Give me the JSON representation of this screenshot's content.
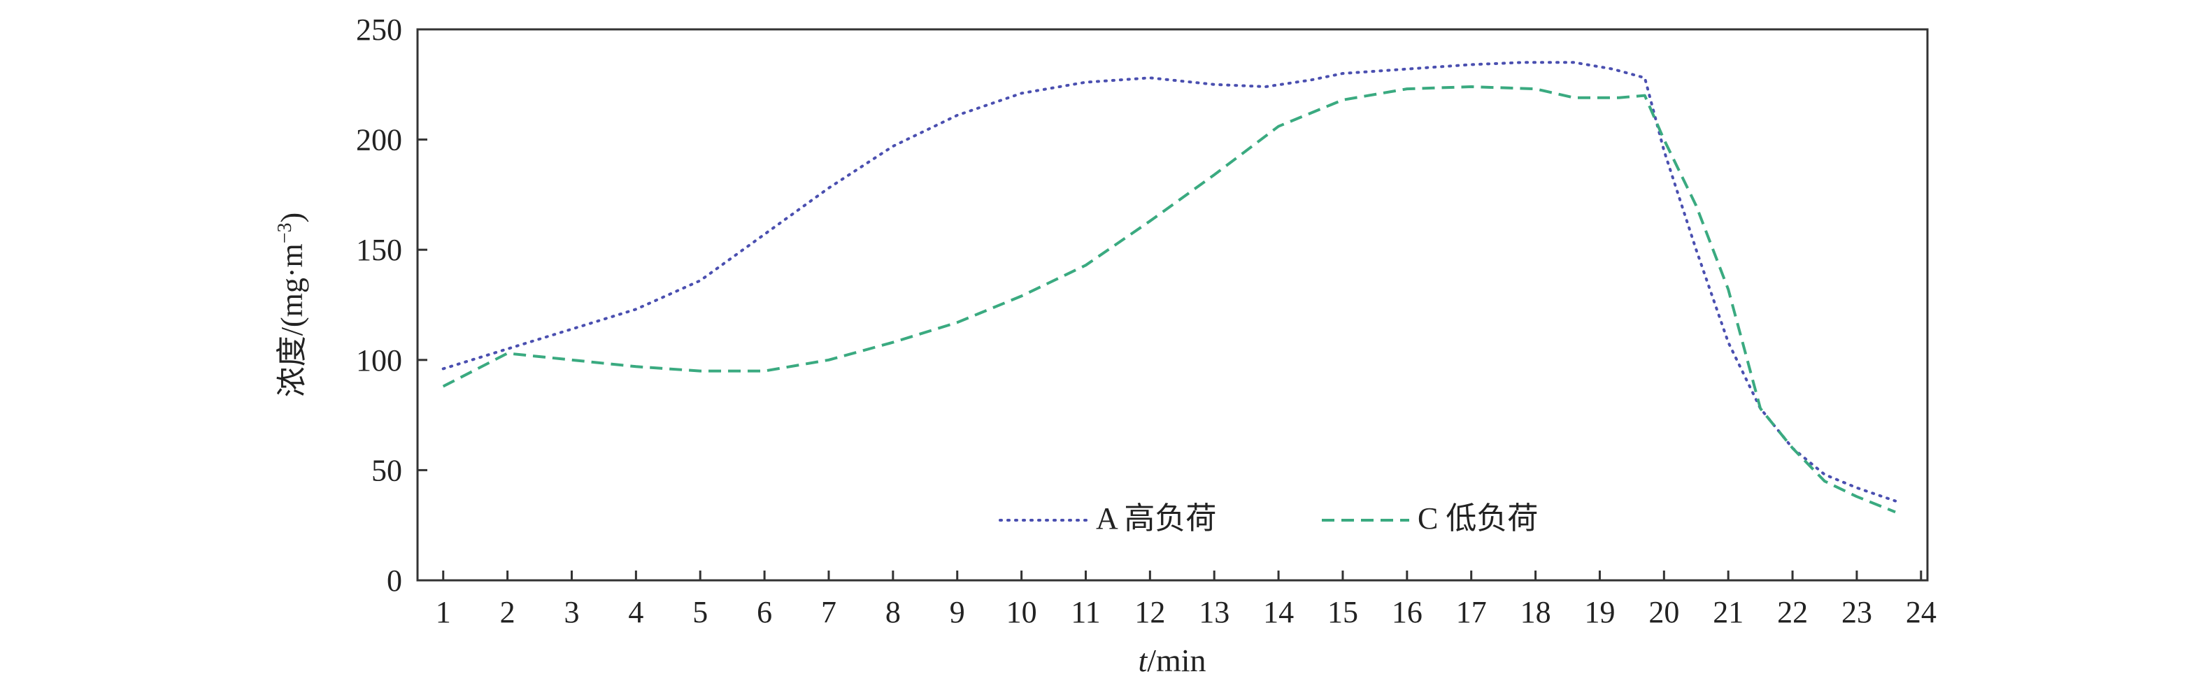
{
  "chart_data": {
    "type": "line",
    "xlabel_italic": "t",
    "xlabel_rest": "/min",
    "ylabel_prefix": "浓度/(mg·m",
    "ylabel_sup": "−3",
    "ylabel_suffix": ")",
    "xlim": [
      0.6,
      24.1
    ],
    "ylim": [
      0,
      250
    ],
    "x_ticks": [
      1,
      2,
      3,
      4,
      5,
      6,
      7,
      8,
      9,
      10,
      11,
      12,
      13,
      14,
      15,
      16,
      17,
      18,
      19,
      20,
      21,
      22,
      23,
      24
    ],
    "y_ticks": [
      0,
      50,
      100,
      150,
      200,
      250
    ],
    "legend_position": "bottom-center",
    "grid": false,
    "series": [
      {
        "name": "A 高负荷",
        "color": "#4a4fb0",
        "style": "dotted",
        "x": [
          1,
          2,
          3,
          4,
          5,
          6,
          7,
          8,
          9,
          10,
          11,
          12,
          13,
          13.8,
          14.5,
          15,
          16,
          17,
          17.8,
          18.6,
          19.2,
          19.7,
          20,
          20.5,
          21,
          21.5,
          22,
          22.5,
          23,
          23.6
        ],
        "y": [
          96,
          105,
          114,
          123,
          136,
          157,
          178,
          197,
          211,
          221,
          226,
          228,
          225,
          224,
          227,
          230,
          232,
          234,
          235,
          235,
          232,
          228,
          195,
          150,
          108,
          78,
          60,
          48,
          42,
          36
        ]
      },
      {
        "name": "C 低负荷",
        "color": "#3aaa80",
        "style": "dashed",
        "x": [
          1,
          2,
          3,
          4,
          5,
          6,
          7,
          8,
          9,
          10,
          11,
          12,
          13,
          14,
          15,
          16,
          17,
          18,
          18.6,
          19.3,
          19.7,
          20,
          20.5,
          21,
          21.5,
          22,
          22.5,
          23,
          23.6
        ],
        "y": [
          88,
          103,
          100,
          97,
          95,
          95,
          100,
          108,
          117,
          129,
          143,
          163,
          184,
          206,
          218,
          223,
          224,
          223,
          219,
          219,
          220,
          200,
          170,
          132,
          78,
          60,
          45,
          38,
          31
        ]
      }
    ]
  }
}
